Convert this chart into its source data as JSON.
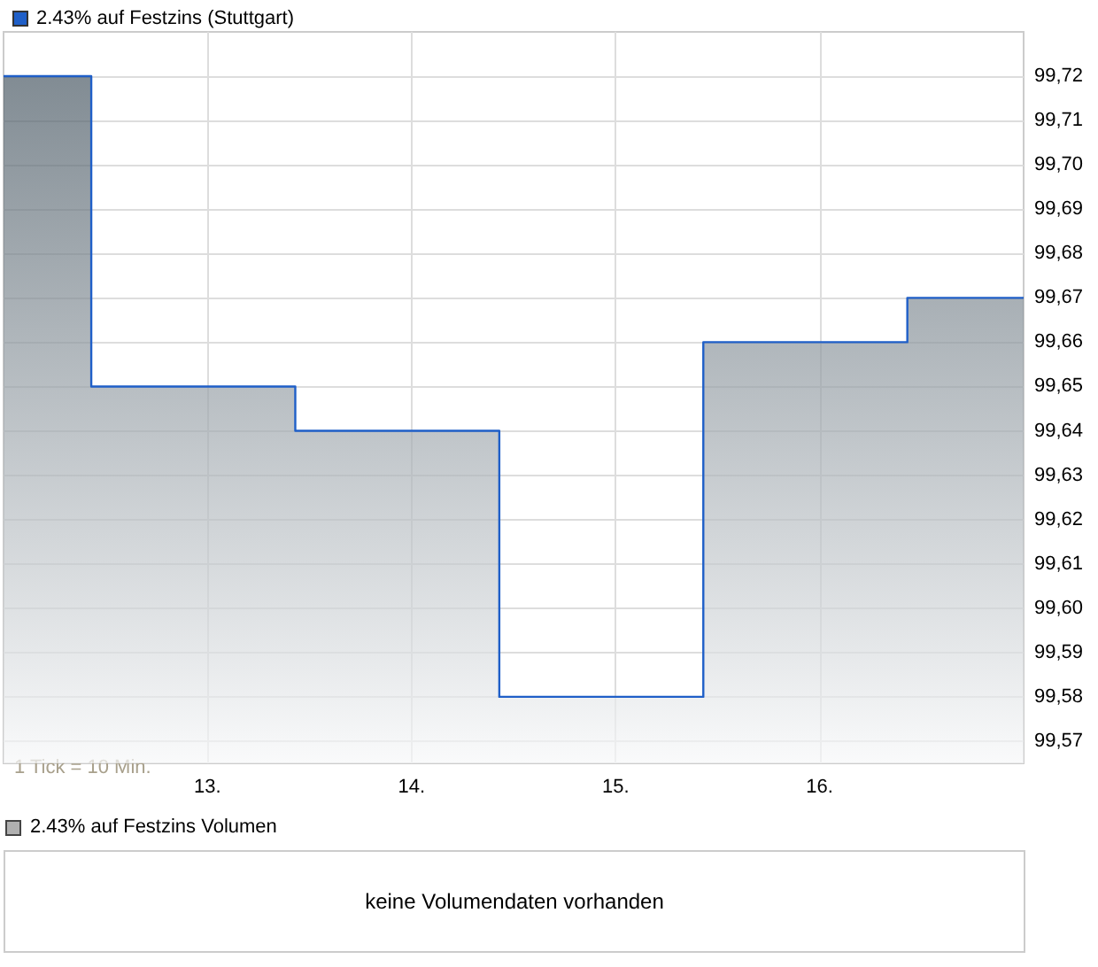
{
  "chart_data": [
    {
      "type": "area",
      "title": null,
      "x": [
        12,
        12.43,
        12.43,
        13.43,
        13.43,
        14.43,
        14.43,
        15.43,
        15.43,
        16.43,
        16.43,
        17
      ],
      "series": [
        {
          "name": "2.43% auf Festzins (Stuttgart)",
          "color": "#1f5fc8",
          "values": [
            99.72,
            99.72,
            99.65,
            99.65,
            99.64,
            99.64,
            99.58,
            99.58,
            99.66,
            99.66,
            99.67,
            99.67
          ]
        }
      ],
      "xlim": [
        12,
        17
      ],
      "xticks": [
        {
          "value": 13,
          "label": "13."
        },
        {
          "value": 14,
          "label": "14."
        },
        {
          "value": 15,
          "label": "15."
        },
        {
          "value": 16,
          "label": "16."
        }
      ],
      "ylim": [
        99.565,
        99.73
      ],
      "yticks": [
        {
          "value": 99.57,
          "label": "99,57"
        },
        {
          "value": 99.58,
          "label": "99,58"
        },
        {
          "value": 99.59,
          "label": "99,59"
        },
        {
          "value": 99.6,
          "label": "99,60"
        },
        {
          "value": 99.61,
          "label": "99,61"
        },
        {
          "value": 99.62,
          "label": "99,62"
        },
        {
          "value": 99.63,
          "label": "99,63"
        },
        {
          "value": 99.64,
          "label": "99,64"
        },
        {
          "value": 99.65,
          "label": "99,65"
        },
        {
          "value": 99.66,
          "label": "99,66"
        },
        {
          "value": 99.67,
          "label": "99,67"
        },
        {
          "value": 99.68,
          "label": "99,68"
        },
        {
          "value": 99.69,
          "label": "99,69"
        },
        {
          "value": 99.7,
          "label": "99,70"
        },
        {
          "value": 99.71,
          "label": "99,71"
        },
        {
          "value": 99.72,
          "label": "99,72"
        }
      ],
      "annotations": [
        "1 Tick = 10 Min."
      ],
      "grid": true,
      "legend": "top left"
    },
    {
      "type": "other",
      "title": "2.43% auf Festzins Volumen",
      "annotations": [
        "keine Volumendaten vorhanden"
      ]
    }
  ]
}
